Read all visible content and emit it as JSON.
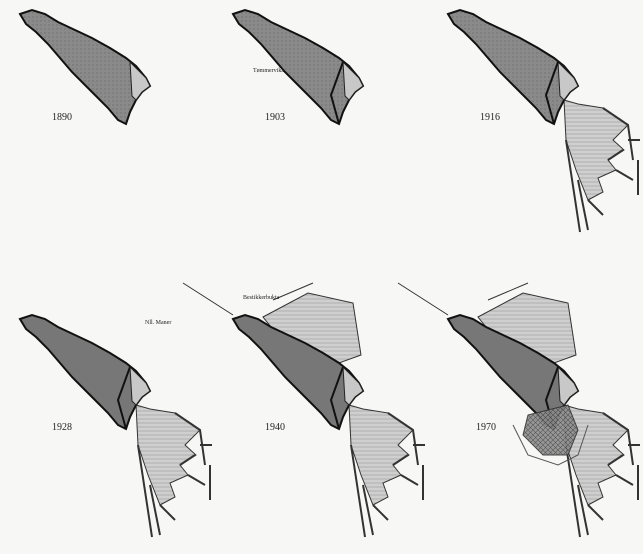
{
  "panels": [
    {
      "year": "1890"
    },
    {
      "year": "1903",
      "label": "Tømmervika"
    },
    {
      "year": "1916"
    },
    {
      "year": "1928",
      "label": "Nll. Maner"
    },
    {
      "year": "1940",
      "label": "Bestikkerbukta"
    },
    {
      "year": "1970"
    }
  ]
}
